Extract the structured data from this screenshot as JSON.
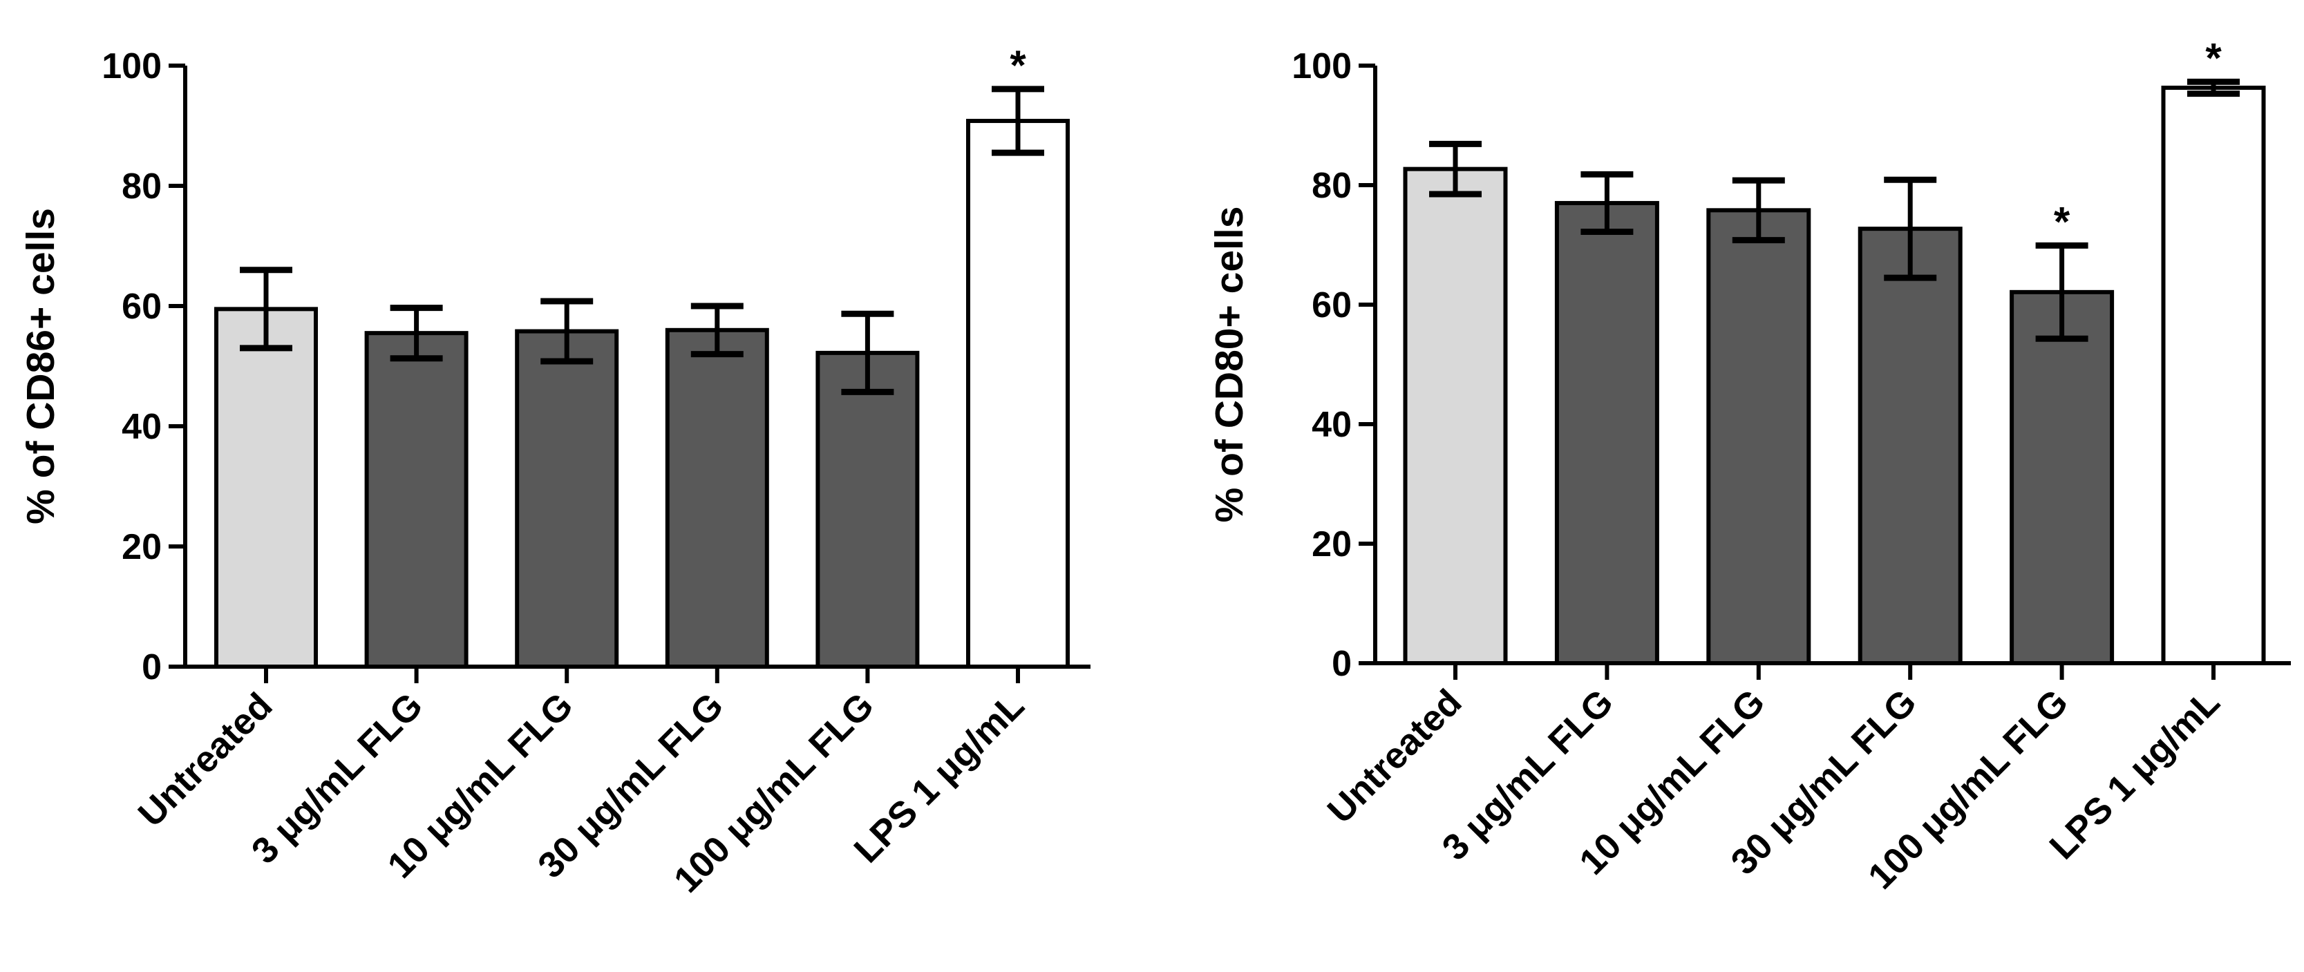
{
  "chart_data": [
    {
      "type": "bar",
      "title": "",
      "xlabel": "",
      "ylabel": "% of CD86+ cells",
      "ylim": [
        0,
        100
      ],
      "yticks": [
        0,
        20,
        40,
        60,
        80,
        100
      ],
      "grid": false,
      "categories": [
        "Untreated",
        "3 μg/mL FLG",
        "10 μg/mL FLG",
        "30 μg/mL FLG",
        "100 μg/mL FLG",
        "LPS 1 μg/mL"
      ],
      "values": [
        59.5,
        55.5,
        55.8,
        56.0,
        52.2,
        90.8
      ],
      "errors": [
        6.5,
        4.2,
        5.0,
        4.0,
        6.5,
        5.3
      ],
      "bar_colors": [
        "#d9d9d9",
        "#595959",
        "#595959",
        "#595959",
        "#595959",
        "#ffffff"
      ],
      "significance": [
        "",
        "",
        "",
        "",
        "",
        "*"
      ]
    },
    {
      "type": "bar",
      "title": "",
      "xlabel": "",
      "ylabel": "% of CD80+ cells",
      "ylim": [
        0,
        100
      ],
      "yticks": [
        0,
        20,
        40,
        60,
        80,
        100
      ],
      "grid": false,
      "categories": [
        "Untreated",
        "3 μg/mL FLG",
        "10 μg/mL FLG",
        "30 μg/mL FLG",
        "100 μg/mL FLG",
        "LPS 1 μg/mL"
      ],
      "values": [
        82.7,
        77.0,
        75.8,
        72.7,
        62.1,
        96.3
      ],
      "errors": [
        4.2,
        4.8,
        5.0,
        8.2,
        7.8,
        1.0
      ],
      "bar_colors": [
        "#d9d9d9",
        "#595959",
        "#595959",
        "#595959",
        "#595959",
        "#ffffff"
      ],
      "significance": [
        "",
        "",
        "",
        "",
        "*",
        "*"
      ]
    }
  ]
}
